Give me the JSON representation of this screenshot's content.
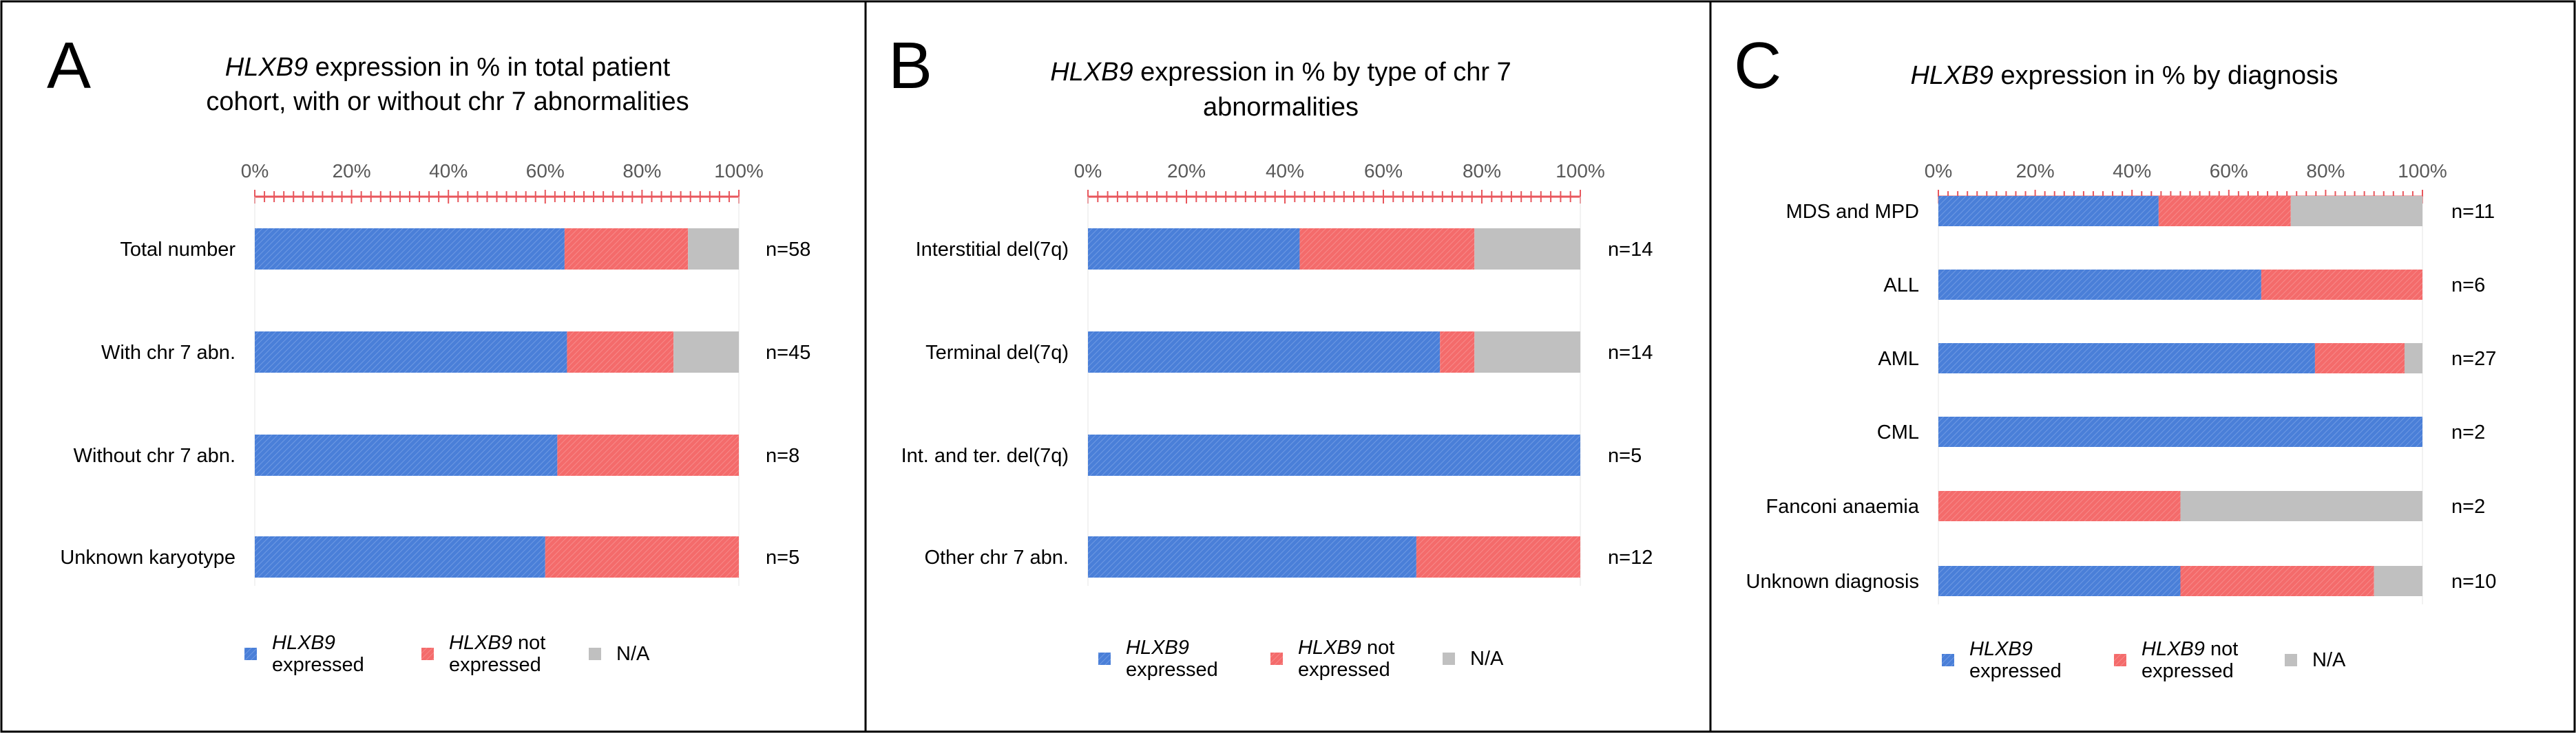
{
  "colors": {
    "expressed": "#4a7fd8",
    "not_expressed": "#f46b6b",
    "na": "#c0c0c0",
    "axis": "#e8565c",
    "border": "#000000"
  },
  "chart_data": [
    {
      "panel": "A",
      "type": "bar",
      "orientation": "horizontal",
      "stacked": true,
      "title_italic": "HLXB9",
      "title_lines": [
        " expression in % in total patient",
        "cohort, with or without chr 7 abnormalities"
      ],
      "xlim": [
        0,
        100
      ],
      "ticks": [
        "0%",
        "20%",
        "40%",
        "60%",
        "80%",
        "100%"
      ],
      "categories": [
        "Total number",
        "With chr 7 abn.",
        "Without chr 7 abn.",
        "Unknown karyotype"
      ],
      "n_labels": [
        "n=58",
        "n=45",
        "n=8",
        "n=5"
      ],
      "series": [
        {
          "name": "HLXB9 expressed",
          "values": [
            64,
            64.5,
            62.5,
            60
          ]
        },
        {
          "name": "HLXB9 not expressed",
          "values": [
            25.5,
            22,
            37.5,
            40
          ]
        },
        {
          "name": "N/A",
          "values": [
            10.5,
            13.5,
            0,
            0
          ]
        }
      ],
      "legend": {
        "expressed_it": "HLXB9",
        "expressed_2": "expressed",
        "not_it": "HLXB9",
        "not_1": " not",
        "not_2": "expressed",
        "na": "N/A"
      }
    },
    {
      "panel": "B",
      "type": "bar",
      "orientation": "horizontal",
      "stacked": true,
      "title_italic": "HLXB9",
      "title_lines": [
        " expression in % by type of chr 7",
        "abnormalities"
      ],
      "xlim": [
        0,
        100
      ],
      "ticks": [
        "0%",
        "20%",
        "40%",
        "60%",
        "80%",
        "100%"
      ],
      "categories": [
        "Interstitial del(7q)",
        "Terminal del(7q)",
        "Int. and ter. del(7q)",
        "Other chr 7 abn."
      ],
      "n_labels": [
        "n=14",
        "n=14",
        "n=5",
        "n=12"
      ],
      "series": [
        {
          "name": "HLXB9 expressed",
          "values": [
            43,
            71.5,
            100,
            66.7
          ]
        },
        {
          "name": "HLXB9 not expressed",
          "values": [
            35.5,
            7,
            0,
            33.3
          ]
        },
        {
          "name": "N/A",
          "values": [
            21.5,
            21.5,
            0,
            0
          ]
        }
      ],
      "legend": {
        "expressed_it": "HLXB9",
        "expressed_2": "expressed",
        "not_it": "HLXB9",
        "not_1": " not",
        "not_2": "expressed",
        "na": "N/A"
      }
    },
    {
      "panel": "C",
      "type": "bar",
      "orientation": "horizontal",
      "stacked": true,
      "title_italic": "HLXB9",
      "title_lines": [
        " expression in % by diagnosis"
      ],
      "xlim": [
        0,
        100
      ],
      "ticks": [
        "0%",
        "20%",
        "40%",
        "60%",
        "80%",
        "100%"
      ],
      "categories": [
        "MDS and MPD",
        "ALL",
        "AML",
        "CML",
        "Fanconi anaemia",
        "Unknown diagnosis"
      ],
      "n_labels": [
        "n=11",
        "n=6",
        "n=27",
        "n=2",
        "n=2",
        "n=10"
      ],
      "series": [
        {
          "name": "HLXB9 expressed",
          "values": [
            45.5,
            66.7,
            77.8,
            100,
            0,
            50
          ]
        },
        {
          "name": "HLXB9 not expressed",
          "values": [
            27.3,
            33.3,
            18.5,
            0,
            50,
            40
          ]
        },
        {
          "name": "N/A",
          "values": [
            27.2,
            0,
            3.7,
            0,
            50,
            10
          ]
        }
      ],
      "legend": {
        "expressed_it": "HLXB9",
        "expressed_2": "expressed",
        "not_it": "HLXB9",
        "not_1": " not",
        "not_2": "expressed",
        "na": "N/A"
      }
    }
  ]
}
